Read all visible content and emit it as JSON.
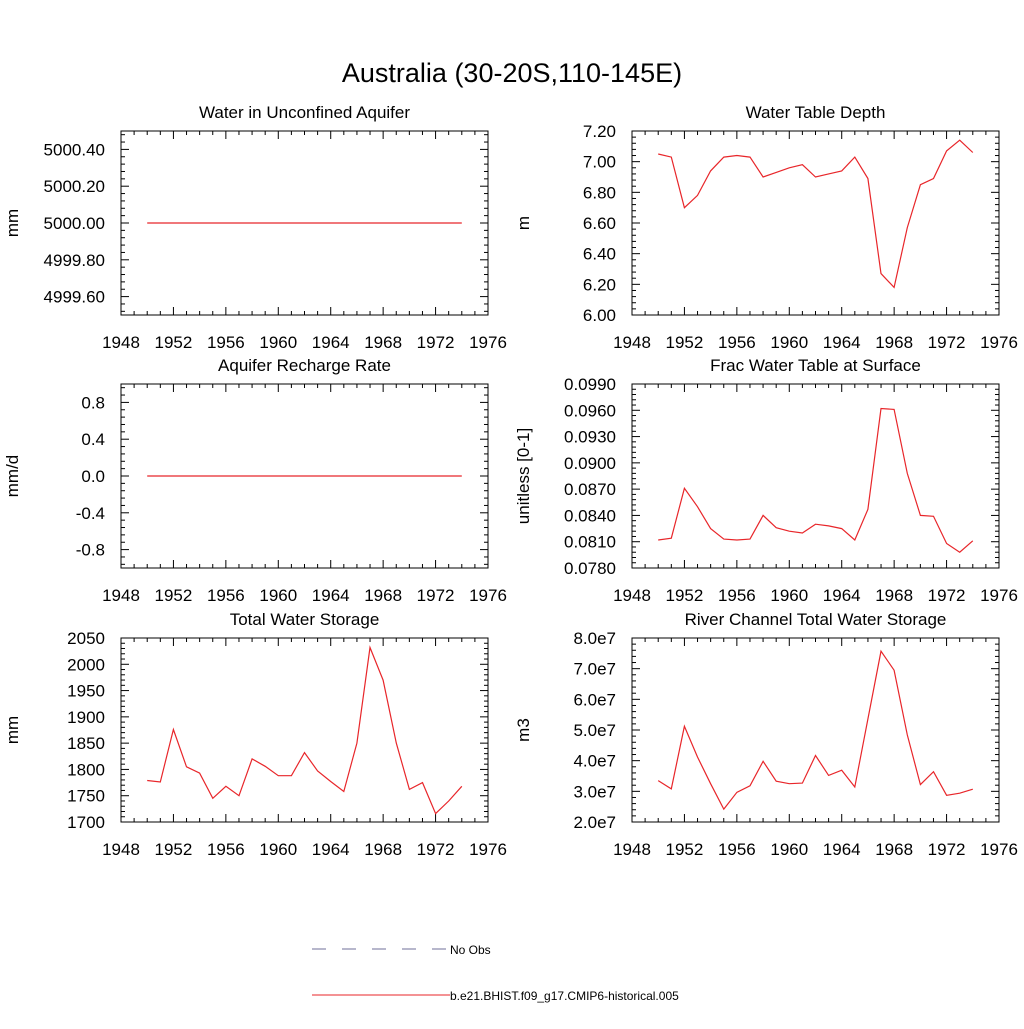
{
  "figure": {
    "title": "Australia (30-20S,110-145E)"
  },
  "legend": {
    "items": [
      {
        "label": "No Obs",
        "color": "#6f6f9a",
        "style": "dashed"
      },
      {
        "label": "b.e21.BHIST.f09_g17.CMIP6-historical.005",
        "color": "#e8262a",
        "style": "solid"
      }
    ]
  },
  "chart_data": [
    {
      "type": "line",
      "title": "Water in Unconfined Aquifer",
      "ylabel": "mm",
      "xlim": [
        1948,
        1976
      ],
      "ylim": [
        4999.5,
        5000.5
      ],
      "x_ticks": [
        "1948",
        "1952",
        "1956",
        "1960",
        "1964",
        "1968",
        "1972",
        "1976"
      ],
      "y_ticks": [
        "4999.60",
        "4999.80",
        "5000.00",
        "5000.20",
        "5000.40"
      ],
      "series": [
        {
          "color": "#e8262a",
          "x": [
            1950,
            1974
          ],
          "y": [
            5000.0,
            5000.0
          ]
        }
      ]
    },
    {
      "type": "line",
      "title": "Water Table Depth",
      "ylabel": "m",
      "xlim": [
        1948,
        1976
      ],
      "ylim": [
        6.0,
        7.2
      ],
      "x_ticks": [
        "1948",
        "1952",
        "1956",
        "1960",
        "1964",
        "1968",
        "1972",
        "1976"
      ],
      "y_ticks": [
        "6.00",
        "6.20",
        "6.40",
        "6.60",
        "6.80",
        "7.00",
        "7.20"
      ],
      "series": [
        {
          "color": "#e8262a",
          "x": [
            1950,
            1951,
            1952,
            1953,
            1954,
            1955,
            1956,
            1957,
            1958,
            1959,
            1960,
            1961,
            1962,
            1963,
            1964,
            1965,
            1966,
            1967,
            1968,
            1969,
            1970,
            1971,
            1972,
            1973,
            1974
          ],
          "y": [
            7.05,
            7.03,
            6.7,
            6.78,
            6.94,
            7.03,
            7.04,
            7.03,
            6.9,
            6.93,
            6.96,
            6.98,
            6.9,
            6.92,
            6.94,
            7.03,
            6.89,
            6.27,
            6.18,
            6.57,
            6.85,
            6.89,
            7.07,
            7.14,
            7.06
          ]
        }
      ]
    },
    {
      "type": "line",
      "title": "Aquifer Recharge Rate",
      "ylabel": "mm/d",
      "xlim": [
        1948,
        1976
      ],
      "ylim": [
        -1.0,
        1.0
      ],
      "x_ticks": [
        "1948",
        "1952",
        "1956",
        "1960",
        "1964",
        "1968",
        "1972",
        "1976"
      ],
      "y_ticks": [
        "-0.8",
        "-0.4",
        "0.0",
        "0.4",
        "0.8"
      ],
      "series": [
        {
          "color": "#e8262a",
          "x": [
            1950,
            1974
          ],
          "y": [
            0.0,
            0.0
          ]
        }
      ]
    },
    {
      "type": "line",
      "title": "Frac Water Table at Surface",
      "ylabel": "unitless [0-1]",
      "xlim": [
        1948,
        1976
      ],
      "ylim": [
        0.078,
        0.099
      ],
      "x_ticks": [
        "1948",
        "1952",
        "1956",
        "1960",
        "1964",
        "1968",
        "1972",
        "1976"
      ],
      "y_ticks": [
        "0.0780",
        "0.0810",
        "0.0840",
        "0.0870",
        "0.0900",
        "0.0930",
        "0.0960",
        "0.0990"
      ],
      "series": [
        {
          "color": "#e8262a",
          "x": [
            1950,
            1951,
            1952,
            1953,
            1954,
            1955,
            1956,
            1957,
            1958,
            1959,
            1960,
            1961,
            1962,
            1963,
            1964,
            1965,
            1966,
            1967,
            1968,
            1969,
            1970,
            1971,
            1972,
            1973,
            1974
          ],
          "y": [
            0.0812,
            0.0814,
            0.0871,
            0.085,
            0.0825,
            0.0813,
            0.0812,
            0.0813,
            0.084,
            0.0826,
            0.0822,
            0.082,
            0.083,
            0.0828,
            0.0825,
            0.0812,
            0.0847,
            0.0962,
            0.0961,
            0.0888,
            0.084,
            0.0839,
            0.0808,
            0.0798,
            0.0811
          ]
        }
      ]
    },
    {
      "type": "line",
      "title": "Total Water Storage",
      "ylabel": "mm",
      "xlim": [
        1948,
        1976
      ],
      "ylim": [
        1700,
        2050
      ],
      "x_ticks": [
        "1948",
        "1952",
        "1956",
        "1960",
        "1964",
        "1968",
        "1972",
        "1976"
      ],
      "y_ticks": [
        "1700",
        "1750",
        "1800",
        "1850",
        "1900",
        "1950",
        "2000",
        "2050"
      ],
      "series": [
        {
          "color": "#e8262a",
          "x": [
            1950,
            1951,
            1952,
            1953,
            1954,
            1955,
            1956,
            1957,
            1958,
            1959,
            1960,
            1961,
            1962,
            1963,
            1964,
            1965,
            1966,
            1967,
            1968,
            1969,
            1970,
            1971,
            1972,
            1973,
            1974
          ],
          "y": [
            1779,
            1776,
            1876,
            1805,
            1793,
            1745,
            1768,
            1750,
            1820,
            1806,
            1788,
            1788,
            1832,
            1797,
            1777,
            1758,
            1850,
            2032,
            1970,
            1850,
            1762,
            1775,
            1716,
            1740,
            1768
          ]
        }
      ]
    },
    {
      "type": "line",
      "title": "River Channel Total Water Storage",
      "ylabel": "m3",
      "xlim": [
        1948,
        1976
      ],
      "ylim": [
        20000000.0,
        80000000.0
      ],
      "x_ticks": [
        "1948",
        "1952",
        "1956",
        "1960",
        "1964",
        "1968",
        "1972",
        "1976"
      ],
      "y_ticks": [
        "2.0e7",
        "3.0e7",
        "4.0e7",
        "5.0e7",
        "6.0e7",
        "7.0e7",
        "8.0e7"
      ],
      "series": [
        {
          "color": "#e8262a",
          "x": [
            1950,
            1951,
            1952,
            1953,
            1954,
            1955,
            1956,
            1957,
            1958,
            1959,
            1960,
            1961,
            1962,
            1963,
            1964,
            1965,
            1966,
            1967,
            1968,
            1969,
            1970,
            1971,
            1972,
            1973,
            1974
          ],
          "y": [
            33500000.0,
            30800000.0,
            51200000.0,
            41200000.0,
            32500000.0,
            24200000.0,
            29700000.0,
            31800000.0,
            39800000.0,
            33300000.0,
            32500000.0,
            32700000.0,
            41700000.0,
            35200000.0,
            36900000.0,
            31400000.0,
            53600000.0,
            75700000.0,
            69500000.0,
            48400000.0,
            32200000.0,
            36400000.0,
            28700000.0,
            29400000.0,
            30700000.0
          ]
        }
      ]
    }
  ]
}
